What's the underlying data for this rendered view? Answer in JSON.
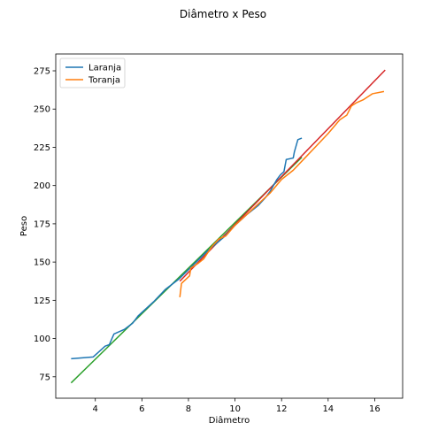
{
  "chart_data": {
    "type": "line",
    "title": "Diâmetro x Peso",
    "xlabel": "Diâmetro",
    "ylabel": "Peso",
    "xlim": [
      2.3,
      17.2
    ],
    "ylim": [
      61,
      286
    ],
    "x_ticks": [
      4,
      6,
      8,
      10,
      12,
      14,
      16
    ],
    "y_ticks": [
      75,
      100,
      125,
      150,
      175,
      200,
      225,
      250,
      275
    ],
    "grid": false,
    "legend_position": "upper-left",
    "series": [
      {
        "name": "Laranja",
        "color": "#1f77b4",
        "x": [
          2.96,
          3.91,
          4.42,
          4.6,
          4.8,
          5.25,
          5.6,
          5.85,
          6.5,
          7.0,
          7.6,
          8.2,
          8.8,
          9.5,
          10.0,
          10.5,
          11.0,
          11.3,
          11.5,
          11.8,
          11.95,
          12.1,
          12.2,
          12.5,
          12.55,
          12.7,
          12.87
        ],
        "y": [
          86.8,
          88.0,
          95.0,
          96.0,
          103.0,
          106.0,
          110.0,
          115.0,
          124.0,
          132.0,
          139.0,
          148.0,
          157.0,
          166.0,
          174.0,
          181.0,
          187.0,
          192.0,
          196.0,
          204.0,
          207.0,
          209.0,
          217.0,
          218.0,
          222.0,
          230.0,
          231.0
        ]
      },
      {
        "name": "Toranja",
        "color": "#ff7f0e",
        "x": [
          7.63,
          7.7,
          8.05,
          8.1,
          8.4,
          8.65,
          9.0,
          9.3,
          9.6,
          10.0,
          10.5,
          11.0,
          11.5,
          12.0,
          12.5,
          13.0,
          13.5,
          14.0,
          14.5,
          14.8,
          15.0,
          15.2,
          15.5,
          15.9,
          16.4
        ],
        "y": [
          127.0,
          136.0,
          141.0,
          146.0,
          149.0,
          152.0,
          160.0,
          165.0,
          167.0,
          174.0,
          181.0,
          188.0,
          195.0,
          204.0,
          210.0,
          218.0,
          226.0,
          234.0,
          243.0,
          246.0,
          252.0,
          254.0,
          256.0,
          260.0,
          261.5
        ]
      }
    ],
    "fit_lines": [
      {
        "color": "#2ca02c",
        "x": [
          2.96,
          12.87
        ],
        "y": [
          71.0,
          218.5
        ]
      },
      {
        "color": "#d62728",
        "x": [
          7.63,
          16.45
        ],
        "y": [
          137.5,
          275.5
        ]
      }
    ]
  }
}
